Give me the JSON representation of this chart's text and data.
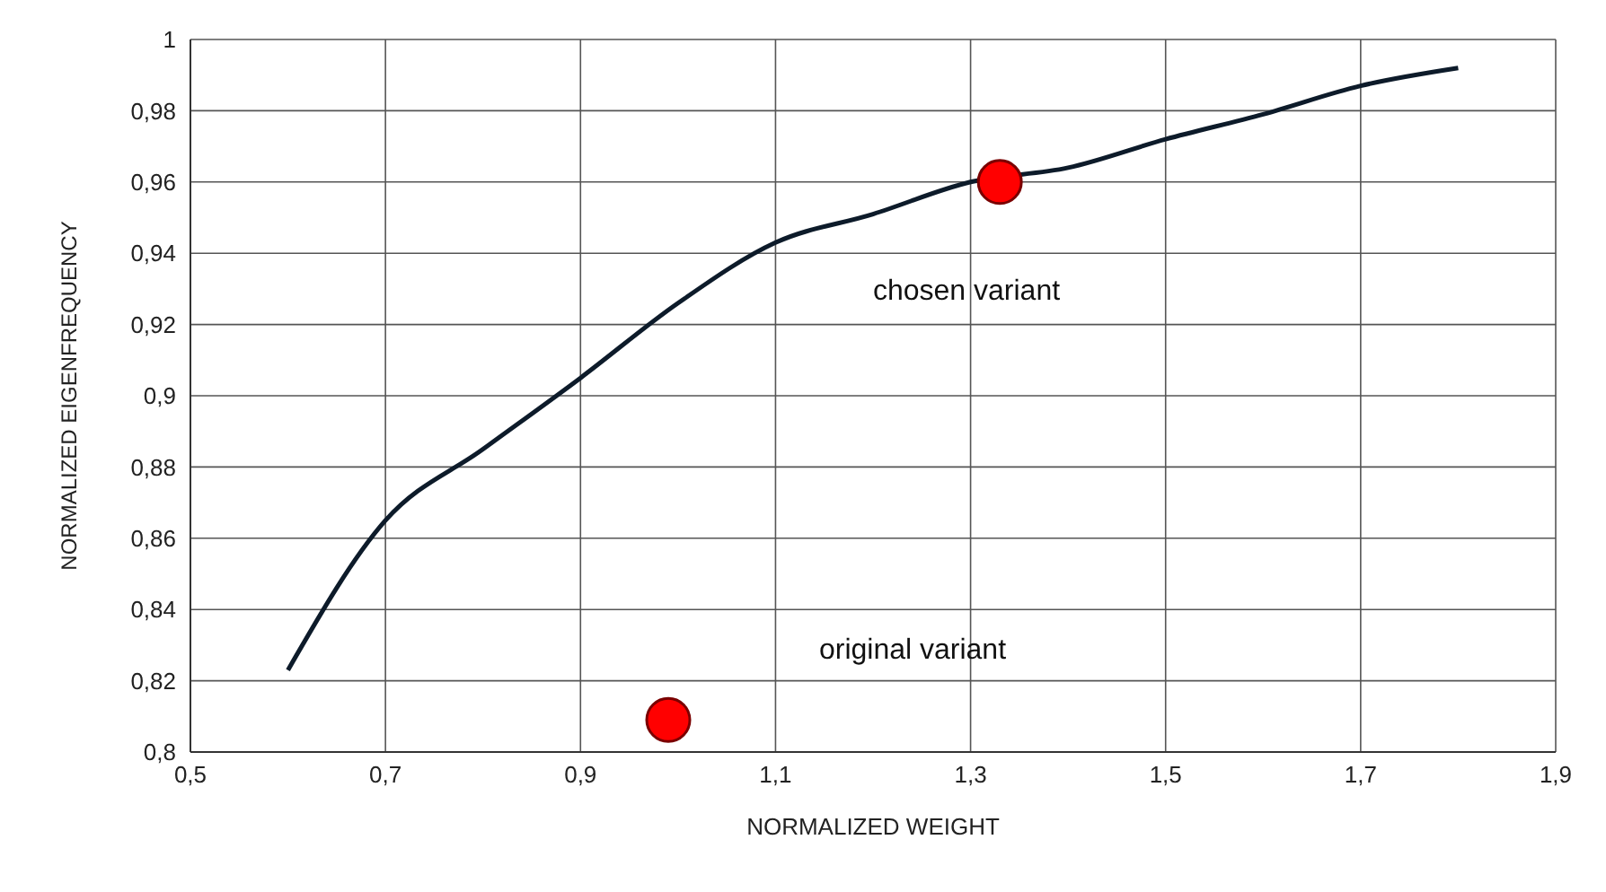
{
  "chart_data": {
    "type": "line",
    "xlabel": "NORMALIZED WEIGHT",
    "ylabel": "NORMALIZED EIGENFREQUENCY",
    "xlim": [
      0.5,
      1.9
    ],
    "ylim": [
      0.8,
      1
    ],
    "xticks": [
      {
        "value": 0.5,
        "label": "0,5"
      },
      {
        "value": 0.7,
        "label": "0,7"
      },
      {
        "value": 0.9,
        "label": "0,9"
      },
      {
        "value": 1.1,
        "label": "1,1"
      },
      {
        "value": 1.3,
        "label": "1,3"
      },
      {
        "value": 1.5,
        "label": "1,5"
      },
      {
        "value": 1.7,
        "label": "1,7"
      },
      {
        "value": 1.9,
        "label": "1,9"
      }
    ],
    "yticks": [
      {
        "value": 0.8,
        "label": "0,8"
      },
      {
        "value": 0.82,
        "label": "0,82"
      },
      {
        "value": 0.84,
        "label": "0,84"
      },
      {
        "value": 0.86,
        "label": "0,86"
      },
      {
        "value": 0.88,
        "label": "0,88"
      },
      {
        "value": 0.9,
        "label": "0,9"
      },
      {
        "value": 0.92,
        "label": "0,92"
      },
      {
        "value": 0.94,
        "label": "0,94"
      },
      {
        "value": 0.96,
        "label": "0,96"
      },
      {
        "value": 0.98,
        "label": "0,98"
      },
      {
        "value": 1,
        "label": "1"
      }
    ],
    "grid": true,
    "line_style": "solid",
    "series": [
      {
        "color": "#0d1b2a",
        "x": [
          0.6,
          0.7,
          0.8,
          0.9,
          1.0,
          1.1,
          1.2,
          1.3,
          1.4,
          1.5,
          1.6,
          1.7,
          1.8
        ],
        "values": [
          0.823,
          0.865,
          0.885,
          0.905,
          0.926,
          0.943,
          0.951,
          0.96,
          0.964,
          0.972,
          0.979,
          0.987,
          0.992
        ]
      },
      {
        "type": "scatter",
        "marker": "circle",
        "color": "#ff0000",
        "x": [
          1.33,
          0.99
        ],
        "values": [
          0.96,
          0.809
        ]
      }
    ],
    "annotations": [
      "chosen variant",
      "original variant"
    ]
  }
}
